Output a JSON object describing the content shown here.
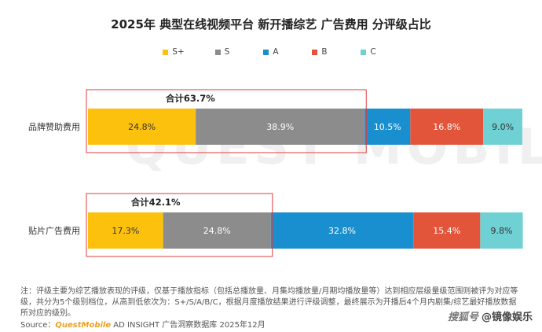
{
  "page": {
    "watermark": "QUEST MOBILE",
    "note": "注：评级主要为综艺播放表现的评级，仅基于播放指标（包括总播放量、月集均播放量/月期均播放量等）达到相应层级量级范围则被评为对应等级，共分为5个级别档位，从高到低依次为：S+/S/A/B/C，根据月度播放结果进行评级调整，最终展示为开播后4个月内剧集/综艺最好播放数据所对应的级别。",
    "source_prefix": "Source：",
    "source_brand": "QuestMobile",
    "source_rest": " AD INSIGHT 广告洞察数据库 2025年12月",
    "corner_tag": "搜狐号",
    "corner_account": "@镜像娱乐"
  },
  "chart_data": {
    "type": "bar",
    "orientation": "horizontal-stacked-100",
    "title": "2025年 典型在线视频平台 新开播综艺 广告费用 分评级占比",
    "categories": [
      "品牌赞助费用",
      "贴片广告费用"
    ],
    "series": [
      {
        "name": "S+",
        "color": "#fcc10c",
        "values": [
          24.8,
          17.3
        ]
      },
      {
        "name": "S",
        "color": "#8c8c8c",
        "values": [
          38.9,
          24.8
        ]
      },
      {
        "name": "A",
        "color": "#1a8fd0",
        "values": [
          10.5,
          32.8
        ]
      },
      {
        "name": "B",
        "color": "#e3553a",
        "values": [
          16.8,
          15.4
        ]
      },
      {
        "name": "C",
        "color": "#6fd1d4",
        "values": [
          9.0,
          9.8
        ]
      }
    ],
    "value_labels": [
      [
        "24.8%",
        "38.9%",
        "10.5%",
        "16.8%",
        "9.0%"
      ],
      [
        "17.3%",
        "24.8%",
        "32.8%",
        "15.4%",
        "9.8%"
      ]
    ],
    "annotations": [
      {
        "category": "品牌赞助费用",
        "text": "合计63.7%",
        "value": 63.7
      },
      {
        "category": "贴片广告费用",
        "text": "合计42.1%",
        "value": 42.1
      }
    ],
    "legend_position": "top",
    "grid": false
  }
}
